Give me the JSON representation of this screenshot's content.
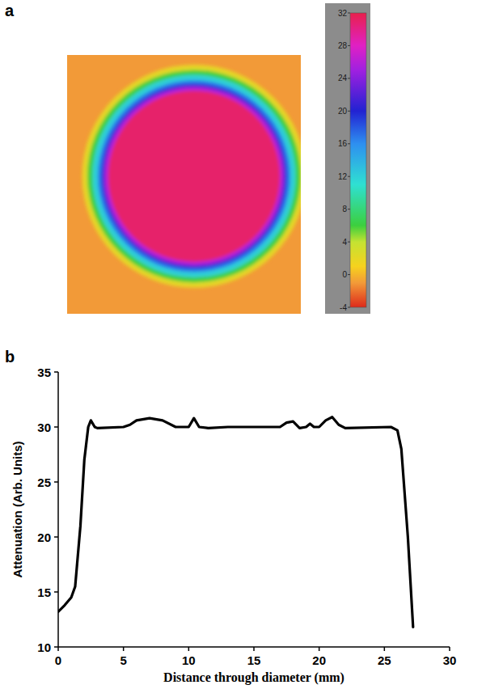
{
  "chart_data": [
    {
      "type": "heatmap",
      "label": "a",
      "xlim": [
        -17,
        14.3
      ],
      "ylim": [
        -18.5,
        16.3
      ],
      "tick_labels": false,
      "background": -1,
      "rings": {
        "radius": [
          15,
          14.3,
          13.6,
          12.9,
          12.4,
          12,
          11.5
        ],
        "values": [
          2,
          6,
          12,
          17,
          21,
          26,
          31
        ]
      },
      "colorbar": {
        "range": [
          -4,
          32
        ],
        "ticks": [
          -4,
          0,
          4,
          8,
          12,
          16,
          20,
          24,
          28,
          32
        ]
      }
    },
    {
      "type": "line",
      "label": "b",
      "x": [
        0,
        0.5,
        1,
        1.3,
        1.7,
        2,
        2.3,
        2.5,
        2.8,
        3,
        5,
        5.5,
        6,
        7,
        8,
        9,
        10,
        10.4,
        10.8,
        11.5,
        13,
        15,
        17,
        17.5,
        18,
        18.5,
        19,
        19.3,
        19.6,
        20,
        20.5,
        21,
        21.5,
        22,
        25.5,
        26,
        26.3,
        26.8,
        27.2
      ],
      "values": [
        13.2,
        13.8,
        14.5,
        15.5,
        21,
        27,
        30,
        30.6,
        30,
        29.9,
        30,
        30.2,
        30.6,
        30.8,
        30.6,
        30,
        30,
        30.8,
        30,
        29.9,
        30,
        30,
        30,
        30.4,
        30.5,
        29.9,
        30,
        30.3,
        30,
        30,
        30.6,
        30.9,
        30.2,
        29.9,
        30,
        29.7,
        28,
        20,
        11.8
      ],
      "xlim": [
        0,
        30
      ],
      "ylim": [
        10,
        35
      ],
      "xticks": [
        0,
        5,
        10,
        15,
        20,
        25,
        30
      ],
      "yticks": [
        10,
        15,
        20,
        25,
        30,
        35
      ],
      "xlabel": "Distance through diameter (mm)",
      "ylabel": "Attenuation (Arb. Units)",
      "color": "#000000"
    }
  ]
}
